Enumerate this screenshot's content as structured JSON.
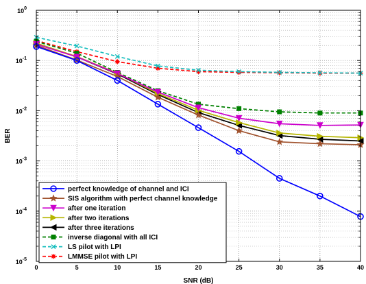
{
  "chart_data": {
    "type": "line",
    "xlabel": "SNR (dB)",
    "ylabel": "BER",
    "x": [
      0,
      5,
      10,
      15,
      20,
      25,
      30,
      35,
      40
    ],
    "xticks": [
      "0",
      "5",
      "10",
      "15",
      "20",
      "25",
      "30",
      "35",
      "40"
    ],
    "xlim": [
      0,
      40
    ],
    "ylim": [
      1e-05,
      1
    ],
    "yscale": "log",
    "ytick_labels": [
      {
        "base": "10",
        "exp": "-5"
      },
      {
        "base": "10",
        "exp": "-4"
      },
      {
        "base": "10",
        "exp": "-3"
      },
      {
        "base": "10",
        "exp": "-2"
      },
      {
        "base": "10",
        "exp": "-1"
      },
      {
        "base": "10",
        "exp": "0"
      }
    ],
    "grid": true,
    "legend_position": "lower-left",
    "series": [
      {
        "name": "perfect knowledge of channel and ICI",
        "color": "#0000ff",
        "linestyle": "solid",
        "marker": "circle",
        "values": [
          0.19,
          0.1,
          0.04,
          0.0135,
          0.0046,
          0.00155,
          0.00045,
          0.0002,
          7.8e-05
        ]
      },
      {
        "name": "SIS algorithm with perfect channel knowledge",
        "color": "#a0522d",
        "linestyle": "solid",
        "marker": "star",
        "values": [
          0.2,
          0.102,
          0.048,
          0.0185,
          0.0082,
          0.004,
          0.0024,
          0.0022,
          0.0021
        ]
      },
      {
        "name": "after one iteration",
        "color": "#cc00cc",
        "linestyle": "solid",
        "marker": "triangle-down",
        "values": [
          0.21,
          0.118,
          0.055,
          0.0235,
          0.0115,
          0.0071,
          0.0055,
          0.0051,
          0.0052
        ]
      },
      {
        "name": "after two iterations",
        "color": "#b5b500",
        "linestyle": "solid",
        "marker": "triangle-right",
        "values": [
          0.22,
          0.12,
          0.056,
          0.022,
          0.0102,
          0.0058,
          0.0036,
          0.0031,
          0.0029
        ]
      },
      {
        "name": "after three iterations",
        "color": "#000000",
        "linestyle": "solid",
        "marker": "triangle-left",
        "values": [
          0.22,
          0.118,
          0.054,
          0.021,
          0.0092,
          0.0051,
          0.0032,
          0.0027,
          0.0025
        ]
      },
      {
        "name": "inverse diagonal with all ICI",
        "color": "#008000",
        "linestyle": "dashed",
        "marker": "square",
        "values": [
          0.24,
          0.14,
          0.058,
          0.025,
          0.0135,
          0.011,
          0.0095,
          0.009,
          0.009
        ]
      },
      {
        "name": "LS pilot with LPI",
        "color": "#17bebe",
        "linestyle": "dashed",
        "marker": "x",
        "values": [
          0.29,
          0.195,
          0.12,
          0.078,
          0.064,
          0.06,
          0.058,
          0.057,
          0.056
        ]
      },
      {
        "name": "LMMSE pilot with LPI",
        "color": "#ff0000",
        "linestyle": "dashed",
        "marker": "asterisk",
        "values": [
          0.25,
          0.15,
          0.095,
          0.07,
          0.06,
          0.058,
          0.057,
          0.056,
          0.056
        ]
      }
    ]
  }
}
